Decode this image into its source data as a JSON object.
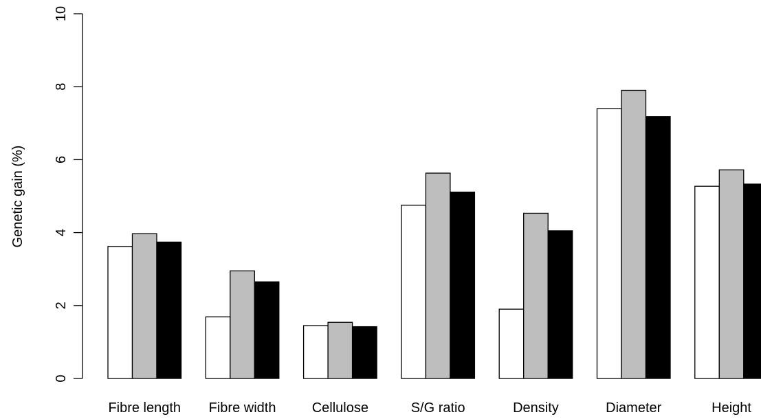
{
  "chart_data": {
    "type": "bar",
    "title": "",
    "xlabel": "",
    "ylabel": "Genetic gain (%)",
    "ylim": [
      0,
      10
    ],
    "yticks": [
      0,
      2,
      4,
      6,
      8,
      10
    ],
    "grid": false,
    "legend": "none",
    "categories": [
      "Fibre length",
      "Fibre width",
      "Cellulose",
      "S/G ratio",
      "Density",
      "Diameter",
      "Height"
    ],
    "series": [
      {
        "color": "#ffffff",
        "values": [
          3.62,
          1.69,
          1.45,
          4.75,
          1.9,
          7.4,
          5.27
        ]
      },
      {
        "color": "#bebebe",
        "values": [
          3.97,
          2.95,
          1.54,
          5.63,
          4.53,
          7.9,
          5.72
        ]
      },
      {
        "color": "#000000",
        "values": [
          3.74,
          2.65,
          1.42,
          5.11,
          4.05,
          7.18,
          5.33
        ]
      }
    ]
  }
}
